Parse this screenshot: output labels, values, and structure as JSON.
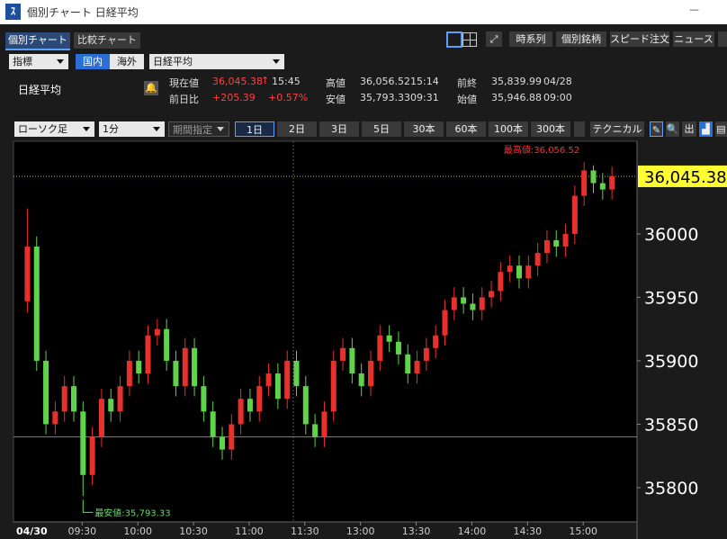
{
  "window": {
    "title": "個別チャート 日経平均",
    "minimize": "—"
  },
  "tabs": [
    "個別チャート",
    "比較チャート"
  ],
  "toolbar_buttons": [
    "時系列",
    "個別銘柄",
    "スピード注文",
    "ニュース"
  ],
  "selector": {
    "indicator": "指標",
    "market": [
      "国内",
      "海外"
    ],
    "symbol": "日経平均"
  },
  "quote": {
    "name": "日経平均",
    "current_label": "現在値",
    "current": "36,045.38",
    "arrow": "↑",
    "current_time": "15:45",
    "change_label": "前日比",
    "change": "+205.39",
    "change_pct": "+0.57%",
    "high_label": "高値",
    "high": "36,056.52",
    "high_time": "15:14",
    "low_label": "安値",
    "low": "35,793.33",
    "low_time": "09:31",
    "prev_label": "前終",
    "prev": "35,839.99",
    "prev_date": "04/28",
    "open_label": "始値",
    "open": "35,946.88",
    "open_time": "09:00"
  },
  "chart_controls": {
    "chart_type": "ローソク足",
    "interval": "1分",
    "period": "期間指定",
    "ranges": [
      "1日",
      "2日",
      "3日",
      "5日",
      "30本",
      "60本",
      "100本",
      "300本"
    ],
    "technical": "テクニカル",
    "icon_text": "出"
  },
  "chart_data": {
    "type": "candlestick",
    "up_color": "#e8302c",
    "down_color": "#5fd34a",
    "x": [
      0,
      5,
      10,
      15,
      20,
      25,
      30,
      35,
      40,
      45,
      50,
      55,
      60,
      65,
      70,
      75,
      80,
      85,
      90,
      95,
      100,
      105,
      110,
      115,
      120,
      125,
      130,
      135,
      140,
      145,
      150,
      155,
      160,
      165,
      170,
      175,
      180,
      185,
      190,
      195,
      200,
      205,
      210,
      215,
      220,
      225,
      230,
      235,
      240,
      245,
      250,
      255,
      260,
      265,
      270,
      275,
      280,
      285,
      290,
      295,
      300,
      305,
      310,
      315
    ],
    "open": [
      35946.88,
      35990,
      35900,
      35850,
      35860,
      35880,
      35860,
      35810,
      35840,
      35870,
      35860,
      35880,
      35900,
      35890,
      35920,
      35925,
      35900,
      35880,
      35910,
      35880,
      35860,
      35840,
      35830,
      35850,
      35870,
      35860,
      35880,
      35890,
      35870,
      35900,
      35880,
      35850,
      35840,
      35860,
      35900,
      35910,
      35890,
      35880,
      35900,
      35920,
      35915,
      35905,
      35890,
      35900,
      35910,
      35920,
      35940,
      35950,
      35945,
      35940,
      35950,
      35955,
      35970,
      35975,
      35965,
      35975,
      35985,
      35995,
      35990,
      36000,
      36030,
      36050,
      36040,
      36035
    ],
    "high": [
      36020,
      35998,
      35908,
      35868,
      35888,
      35888,
      35868,
      35848,
      35878,
      35878,
      35888,
      35908,
      35908,
      35928,
      35933,
      35933,
      35908,
      35918,
      35918,
      35888,
      35868,
      35848,
      35858,
      35878,
      35878,
      35888,
      35898,
      35898,
      35908,
      35908,
      35888,
      35858,
      35868,
      35908,
      35918,
      35918,
      35898,
      35908,
      35928,
      35928,
      35923,
      35913,
      35908,
      35918,
      35928,
      35948,
      35958,
      35958,
      35953,
      35958,
      35963,
      35978,
      35983,
      35983,
      35983,
      35993,
      36003,
      36003,
      36008,
      36038,
      36056.52,
      36054,
      36048,
      36053
    ],
    "low": [
      35938,
      35892,
      35842,
      35842,
      35852,
      35852,
      35793.33,
      35802,
      35832,
      35852,
      35852,
      35872,
      35882,
      35882,
      35912,
      35892,
      35872,
      35872,
      35872,
      35852,
      35832,
      35822,
      35822,
      35842,
      35852,
      35852,
      35872,
      35862,
      35862,
      35872,
      35842,
      35832,
      35832,
      35852,
      35892,
      35882,
      35872,
      35872,
      35892,
      35907,
      35897,
      35882,
      35882,
      35892,
      35902,
      35912,
      35932,
      35937,
      35932,
      35932,
      35942,
      35947,
      35962,
      35957,
      35957,
      35967,
      35977,
      35982,
      35982,
      35992,
      36022,
      36032,
      36027,
      36027
    ],
    "close": [
      35990,
      35900,
      35850,
      35860,
      35880,
      35860,
      35810,
      35840,
      35870,
      35860,
      35880,
      35900,
      35890,
      35920,
      35925,
      35900,
      35880,
      35910,
      35880,
      35860,
      35840,
      35830,
      35850,
      35870,
      35860,
      35880,
      35890,
      35870,
      35900,
      35880,
      35850,
      35840,
      35860,
      35900,
      35910,
      35890,
      35880,
      35900,
      35920,
      35915,
      35905,
      35890,
      35900,
      35910,
      35920,
      35940,
      35950,
      35945,
      35940,
      35950,
      35955,
      35970,
      35975,
      35965,
      35975,
      35985,
      35995,
      35990,
      36000,
      36030,
      36050,
      36040,
      36035,
      36045.38
    ],
    "xlim": [
      -7,
      329
    ],
    "ylim": [
      35773,
      36073
    ],
    "yticks": [
      35800,
      35850,
      35900,
      35950,
      36000
    ],
    "xticks": [
      {
        "value": 30,
        "label": "09:30"
      },
      {
        "value": 60,
        "label": "10:00"
      },
      {
        "value": 90,
        "label": "10:30"
      },
      {
        "value": 120,
        "label": "11:00"
      },
      {
        "value": 150,
        "label": "11:30"
      },
      {
        "value": 180,
        "label": "13:00"
      },
      {
        "value": 210,
        "label": "13:30"
      },
      {
        "value": 240,
        "label": "14:00"
      },
      {
        "value": 270,
        "label": "14:30"
      },
      {
        "value": 300,
        "label": "15:00"
      }
    ],
    "date_label": "04/30",
    "last_price": {
      "value": 36045.38,
      "label": "36,045.38"
    },
    "prev_close": 35839.99,
    "high_annotation": "最高値:36,056.52",
    "low_annotation": "最安値:35,793.33"
  }
}
